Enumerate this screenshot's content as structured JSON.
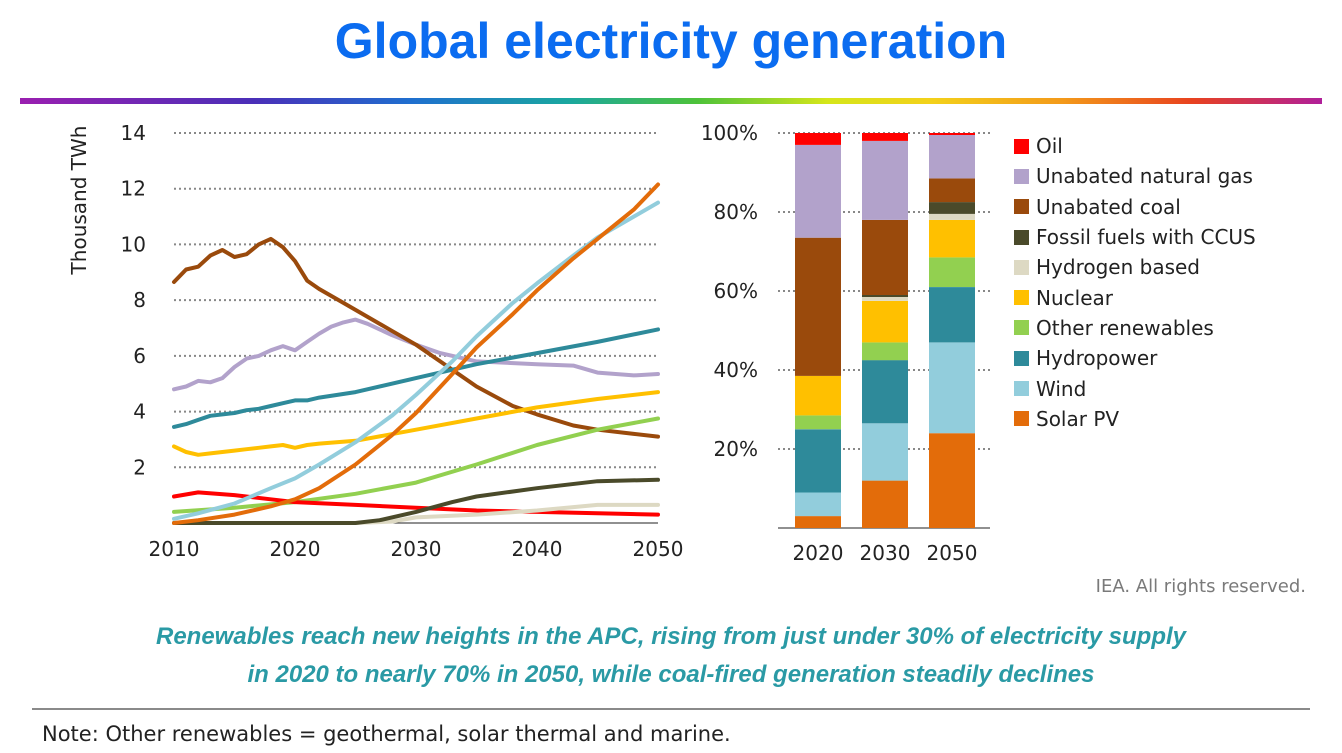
{
  "header": {
    "title": "Global electricity generation"
  },
  "credit": "IEA. All rights reserved.",
  "caption": {
    "line1": "Renewables reach new heights in the APC, rising from just under 30% of electricity supply",
    "line2": "in 2020 to nearly 70% in 2050, while coal-fired generation steadily declines"
  },
  "note": "Note: Other renewables = geothermal, solar thermal and marine.",
  "chart_data": [
    {
      "type": "line",
      "ylabel": "Thousand TWh",
      "xlabel": "",
      "xlim": [
        2010,
        2050
      ],
      "ylim": [
        0,
        14
      ],
      "xticks": [
        "2010",
        "2020",
        "2030",
        "2040",
        "2050"
      ],
      "yticks": [
        "2",
        "4",
        "6",
        "8",
        "10",
        "12",
        "14"
      ],
      "grid": "horizontal dotted",
      "series": [
        {
          "name": "Unabated natural gas",
          "color": "#b2a2cb",
          "x": [
            2010,
            2011,
            2012,
            2013,
            2014,
            2015,
            2016,
            2017,
            2018,
            2019,
            2020,
            2021,
            2022,
            2023,
            2024,
            2025,
            2026,
            2027,
            2028,
            2030,
            2032,
            2035,
            2040,
            2043,
            2045,
            2048,
            2050
          ],
          "y": [
            4.8,
            4.9,
            5.1,
            5.05,
            5.2,
            5.6,
            5.9,
            6.0,
            6.2,
            6.35,
            6.2,
            6.5,
            6.8,
            7.05,
            7.2,
            7.3,
            7.15,
            6.95,
            6.75,
            6.4,
            6.1,
            5.8,
            5.7,
            5.65,
            5.4,
            5.3,
            5.35
          ]
        },
        {
          "name": "Unabated coal",
          "color": "#9a4a0c",
          "x": [
            2010,
            2011,
            2012,
            2013,
            2014,
            2015,
            2016,
            2017,
            2018,
            2019,
            2020,
            2021,
            2022,
            2024,
            2026,
            2028,
            2030,
            2032,
            2035,
            2038,
            2040,
            2043,
            2045,
            2048,
            2050
          ],
          "y": [
            8.65,
            9.1,
            9.2,
            9.6,
            9.8,
            9.55,
            9.65,
            10.0,
            10.2,
            9.9,
            9.4,
            8.7,
            8.4,
            7.9,
            7.4,
            6.9,
            6.4,
            5.8,
            4.9,
            4.2,
            3.9,
            3.5,
            3.35,
            3.2,
            3.1
          ]
        },
        {
          "name": "Hydropower",
          "color": "#2e8a9a",
          "x": [
            2010,
            2011,
            2012,
            2013,
            2014,
            2015,
            2016,
            2017,
            2018,
            2019,
            2020,
            2021,
            2022,
            2025,
            2030,
            2035,
            2040,
            2045,
            2050
          ],
          "y": [
            3.45,
            3.55,
            3.7,
            3.85,
            3.9,
            3.95,
            4.05,
            4.1,
            4.2,
            4.3,
            4.4,
            4.4,
            4.5,
            4.7,
            5.2,
            5.7,
            6.1,
            6.5,
            6.95
          ]
        },
        {
          "name": "Nuclear",
          "color": "#ffc000",
          "x": [
            2010,
            2011,
            2012,
            2013,
            2014,
            2015,
            2016,
            2017,
            2018,
            2019,
            2020,
            2021,
            2022,
            2025,
            2030,
            2035,
            2040,
            2045,
            2050
          ],
          "y": [
            2.75,
            2.55,
            2.45,
            2.5,
            2.55,
            2.6,
            2.65,
            2.7,
            2.75,
            2.8,
            2.7,
            2.8,
            2.85,
            2.95,
            3.35,
            3.75,
            4.15,
            4.45,
            4.7
          ]
        },
        {
          "name": "Other renewables",
          "color": "#92d050",
          "x": [
            2010,
            2015,
            2020,
            2025,
            2030,
            2035,
            2040,
            2045,
            2050
          ],
          "y": [
            0.4,
            0.55,
            0.75,
            1.05,
            1.45,
            2.1,
            2.8,
            3.35,
            3.75
          ]
        },
        {
          "name": "Oil",
          "color": "#ff0000",
          "x": [
            2010,
            2012,
            2015,
            2018,
            2020,
            2025,
            2030,
            2035,
            2040,
            2045,
            2050
          ],
          "y": [
            0.95,
            1.1,
            1.0,
            0.85,
            0.75,
            0.65,
            0.55,
            0.45,
            0.4,
            0.35,
            0.3
          ]
        },
        {
          "name": "Hydrogen based",
          "color": "#ddd9c3",
          "x": [
            2010,
            2025,
            2028,
            2030,
            2035,
            2040,
            2045,
            2050
          ],
          "y": [
            0.0,
            0.0,
            0.05,
            0.2,
            0.3,
            0.45,
            0.65,
            0.65
          ]
        },
        {
          "name": "Fossil fuels with CCUS",
          "color": "#4a4a2a",
          "x": [
            2010,
            2025,
            2027,
            2030,
            2033,
            2035,
            2040,
            2045,
            2050
          ],
          "y": [
            0.0,
            0.0,
            0.1,
            0.4,
            0.75,
            0.95,
            1.25,
            1.5,
            1.55
          ]
        },
        {
          "name": "Wind",
          "color": "#92cddc",
          "x": [
            2010,
            2012,
            2015,
            2018,
            2020,
            2022,
            2025,
            2028,
            2030,
            2033,
            2035,
            2038,
            2040,
            2043,
            2045,
            2048,
            2050
          ],
          "y": [
            0.15,
            0.35,
            0.7,
            1.25,
            1.6,
            2.1,
            2.9,
            3.85,
            4.6,
            5.8,
            6.7,
            7.9,
            8.6,
            9.6,
            10.25,
            11.0,
            11.5
          ]
        },
        {
          "name": "Solar PV",
          "color": "#e36c0a",
          "x": [
            2010,
            2012,
            2015,
            2018,
            2020,
            2022,
            2025,
            2028,
            2030,
            2033,
            2035,
            2038,
            2040,
            2043,
            2045,
            2048,
            2050
          ],
          "y": [
            0.0,
            0.1,
            0.3,
            0.6,
            0.85,
            1.25,
            2.1,
            3.15,
            3.95,
            5.35,
            6.3,
            7.5,
            8.35,
            9.5,
            10.2,
            11.25,
            12.15
          ]
        }
      ]
    },
    {
      "type": "bar",
      "stacked": true,
      "categories": [
        "2020",
        "2030",
        "2050"
      ],
      "ylim": [
        0,
        100
      ],
      "yticks": [
        "20%",
        "40%",
        "60%",
        "80%",
        "100%"
      ],
      "series": [
        {
          "name": "Solar PV",
          "color": "#e36c0a",
          "values": [
            3,
            12,
            24
          ]
        },
        {
          "name": "Wind",
          "color": "#92cddc",
          "values": [
            6,
            14.5,
            23
          ]
        },
        {
          "name": "Hydropower",
          "color": "#2e8a9a",
          "values": [
            16,
            16,
            14
          ]
        },
        {
          "name": "Other renewables",
          "color": "#92d050",
          "values": [
            3.5,
            4.5,
            7.5
          ]
        },
        {
          "name": "Nuclear",
          "color": "#ffc000",
          "values": [
            10,
            10.5,
            9.5
          ]
        },
        {
          "name": "Hydrogen based",
          "color": "#ddd9c3",
          "values": [
            0,
            1,
            1.5
          ]
        },
        {
          "name": "Fossil fuels with CCUS",
          "color": "#4a4a2a",
          "values": [
            0,
            0.5,
            3
          ]
        },
        {
          "name": "Unabated coal",
          "color": "#9a4a0c",
          "values": [
            35,
            19,
            6
          ]
        },
        {
          "name": "Unabated natural gas",
          "color": "#b2a2cb",
          "values": [
            23.5,
            20,
            11
          ]
        },
        {
          "name": "Oil",
          "color": "#ff0000",
          "values": [
            3,
            2,
            0.5
          ]
        }
      ],
      "legend": {
        "placement": "right",
        "order": [
          "Oil",
          "Unabated natural gas",
          "Unabated coal",
          "Fossil fuels with CCUS",
          "Hydrogen based",
          "Nuclear",
          "Other renewables",
          "Hydropower",
          "Wind",
          "Solar PV"
        ]
      }
    }
  ]
}
